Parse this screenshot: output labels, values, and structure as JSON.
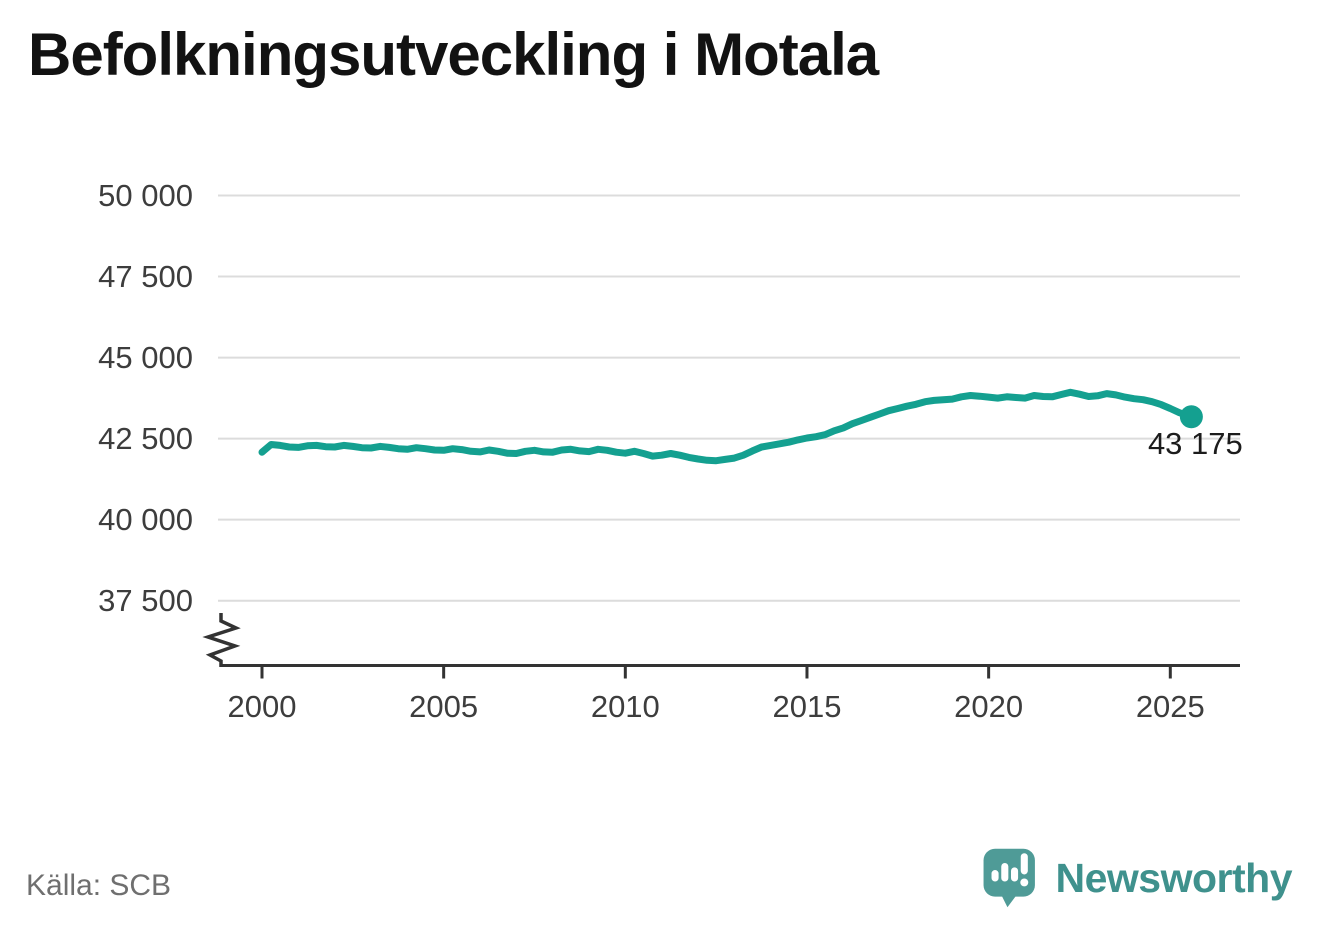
{
  "title": "Befolkningsutveckling i Motala",
  "source": "Källa: SCB",
  "branding": {
    "logo_text": "Newsworthy",
    "logo_icon": "speech-bubble-with-bar-chart-and-exclamation"
  },
  "colors": {
    "line": "#14a090",
    "grid": "#dcdcdc",
    "axis": "#333333",
    "tick_label": "#3d3d3d",
    "title": "#121212",
    "annotation": "#1c1c1c",
    "source": "#6f6f6f",
    "logo_bubble": "#4f9b97",
    "logo_text": "#3f918d"
  },
  "chart_data": {
    "type": "line",
    "title": "Befolkningsutveckling i Motala",
    "xlabel": "",
    "ylabel": "",
    "grid": "horizontal",
    "legend": false,
    "axis_break": true,
    "x_axis": {
      "ticks": [
        2000,
        2005,
        2010,
        2015,
        2020,
        2025
      ],
      "range": [
        2000,
        2025
      ]
    },
    "y_axis": {
      "tick_labels": [
        "50 000",
        "47 500",
        "45 000",
        "42 500",
        "40 000",
        "37 500"
      ],
      "tick_values": [
        50000,
        47500,
        45000,
        42500,
        40000,
        37500
      ]
    },
    "end_point_label": "43 175",
    "end_point_value": 43175,
    "series": [
      {
        "points": [
          [
            2000.0,
            42080
          ],
          [
            2000.25,
            42320
          ],
          [
            2000.5,
            42290
          ],
          [
            2000.75,
            42240
          ],
          [
            2001.0,
            42230
          ],
          [
            2001.25,
            42280
          ],
          [
            2001.5,
            42290
          ],
          [
            2001.75,
            42250
          ],
          [
            2002.0,
            42240
          ],
          [
            2002.25,
            42290
          ],
          [
            2002.5,
            42260
          ],
          [
            2002.75,
            42220
          ],
          [
            2003.0,
            42210
          ],
          [
            2003.25,
            42260
          ],
          [
            2003.5,
            42230
          ],
          [
            2003.75,
            42190
          ],
          [
            2004.0,
            42170
          ],
          [
            2004.25,
            42220
          ],
          [
            2004.5,
            42190
          ],
          [
            2004.75,
            42150
          ],
          [
            2005.0,
            42140
          ],
          [
            2005.25,
            42190
          ],
          [
            2005.5,
            42160
          ],
          [
            2005.75,
            42110
          ],
          [
            2006.0,
            42090
          ],
          [
            2006.25,
            42150
          ],
          [
            2006.5,
            42110
          ],
          [
            2006.75,
            42050
          ],
          [
            2007.0,
            42040
          ],
          [
            2007.25,
            42110
          ],
          [
            2007.5,
            42140
          ],
          [
            2007.75,
            42090
          ],
          [
            2008.0,
            42080
          ],
          [
            2008.25,
            42150
          ],
          [
            2008.5,
            42170
          ],
          [
            2008.75,
            42120
          ],
          [
            2009.0,
            42100
          ],
          [
            2009.25,
            42170
          ],
          [
            2009.5,
            42140
          ],
          [
            2009.75,
            42080
          ],
          [
            2010.0,
            42050
          ],
          [
            2010.25,
            42110
          ],
          [
            2010.5,
            42040
          ],
          [
            2010.75,
            41960
          ],
          [
            2011.0,
            41990
          ],
          [
            2011.25,
            42040
          ],
          [
            2011.5,
            41990
          ],
          [
            2011.75,
            41920
          ],
          [
            2012.0,
            41870
          ],
          [
            2012.25,
            41830
          ],
          [
            2012.5,
            41820
          ],
          [
            2012.75,
            41860
          ],
          [
            2013.0,
            41900
          ],
          [
            2013.25,
            41990
          ],
          [
            2013.5,
            42120
          ],
          [
            2013.75,
            42240
          ],
          [
            2014.0,
            42290
          ],
          [
            2014.25,
            42340
          ],
          [
            2014.5,
            42390
          ],
          [
            2014.75,
            42460
          ],
          [
            2015.0,
            42520
          ],
          [
            2015.25,
            42560
          ],
          [
            2015.5,
            42620
          ],
          [
            2015.75,
            42740
          ],
          [
            2016.0,
            42830
          ],
          [
            2016.25,
            42960
          ],
          [
            2016.5,
            43060
          ],
          [
            2016.75,
            43160
          ],
          [
            2017.0,
            43260
          ],
          [
            2017.25,
            43360
          ],
          [
            2017.5,
            43430
          ],
          [
            2017.75,
            43500
          ],
          [
            2018.0,
            43560
          ],
          [
            2018.25,
            43640
          ],
          [
            2018.5,
            43680
          ],
          [
            2018.75,
            43700
          ],
          [
            2019.0,
            43720
          ],
          [
            2019.25,
            43790
          ],
          [
            2019.5,
            43830
          ],
          [
            2019.75,
            43810
          ],
          [
            2020.0,
            43780
          ],
          [
            2020.25,
            43750
          ],
          [
            2020.5,
            43790
          ],
          [
            2020.75,
            43770
          ],
          [
            2021.0,
            43750
          ],
          [
            2021.25,
            43830
          ],
          [
            2021.5,
            43800
          ],
          [
            2021.75,
            43790
          ],
          [
            2022.0,
            43860
          ],
          [
            2022.25,
            43930
          ],
          [
            2022.5,
            43870
          ],
          [
            2022.75,
            43800
          ],
          [
            2023.0,
            43820
          ],
          [
            2023.25,
            43890
          ],
          [
            2023.5,
            43850
          ],
          [
            2023.75,
            43780
          ],
          [
            2024.0,
            43730
          ],
          [
            2024.25,
            43700
          ],
          [
            2024.5,
            43640
          ],
          [
            2024.75,
            43550
          ],
          [
            2025.0,
            43430
          ],
          [
            2025.25,
            43300
          ],
          [
            2025.58,
            43175
          ]
        ]
      }
    ]
  }
}
